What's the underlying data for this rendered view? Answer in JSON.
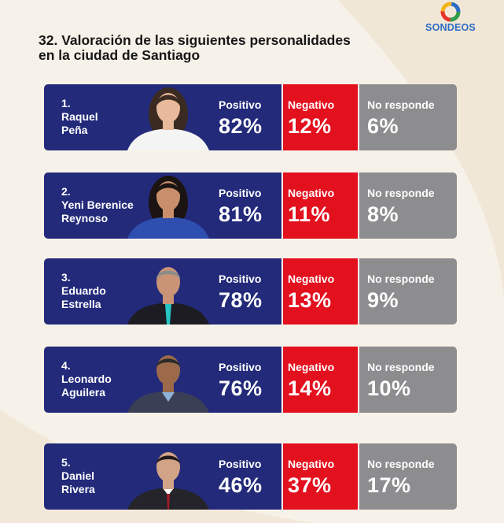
{
  "brand": {
    "name": "SONDEOS",
    "colors": {
      "ring1": "#2e9c4a",
      "ring2": "#e6332a",
      "ring3": "#f2b318",
      "ring4": "#2b6cc4"
    }
  },
  "title_line1": "32. Valoración de las siguientes personalidades",
  "title_line2": "en la ciudad de Santiago",
  "colors": {
    "positive": "#232a7a",
    "negative": "#e3101e",
    "no_response": "#8d8d8f"
  },
  "chart_data": {
    "type": "table",
    "title": "32. Valoración de las siguientes personalidades en la ciudad de Santiago",
    "columns": [
      "Positivo",
      "Negativo",
      "No responde"
    ],
    "rows": [
      {
        "rank": "1.",
        "name_lines": [
          "Raquel",
          "Peña"
        ],
        "name": "Raquel Peña",
        "values": [
          "82%",
          "12%",
          "6%"
        ],
        "numeric": [
          82,
          12,
          6
        ]
      },
      {
        "rank": "2.",
        "name_lines": [
          "Yeni Berenice",
          "Reynoso"
        ],
        "name": "Yeni Berenice Reynoso",
        "values": [
          "81%",
          "11%",
          "8%"
        ],
        "numeric": [
          81,
          11,
          8
        ]
      },
      {
        "rank": "3.",
        "name_lines": [
          "Eduardo",
          "Estrella"
        ],
        "name": "Eduardo Estrella",
        "values": [
          "78%",
          "13%",
          "9%"
        ],
        "numeric": [
          78,
          13,
          9
        ]
      },
      {
        "rank": "4.",
        "name_lines": [
          "Leonardo",
          "Aguilera"
        ],
        "name": "Leonardo Aguilera",
        "values": [
          "76%",
          "14%",
          "10%"
        ],
        "numeric": [
          76,
          14,
          10
        ]
      },
      {
        "rank": "5.",
        "name_lines": [
          "Daniel",
          "Rivera"
        ],
        "name": "Daniel Rivera",
        "values": [
          "46%",
          "37%",
          "17%"
        ],
        "numeric": [
          46,
          37,
          17
        ]
      }
    ]
  }
}
